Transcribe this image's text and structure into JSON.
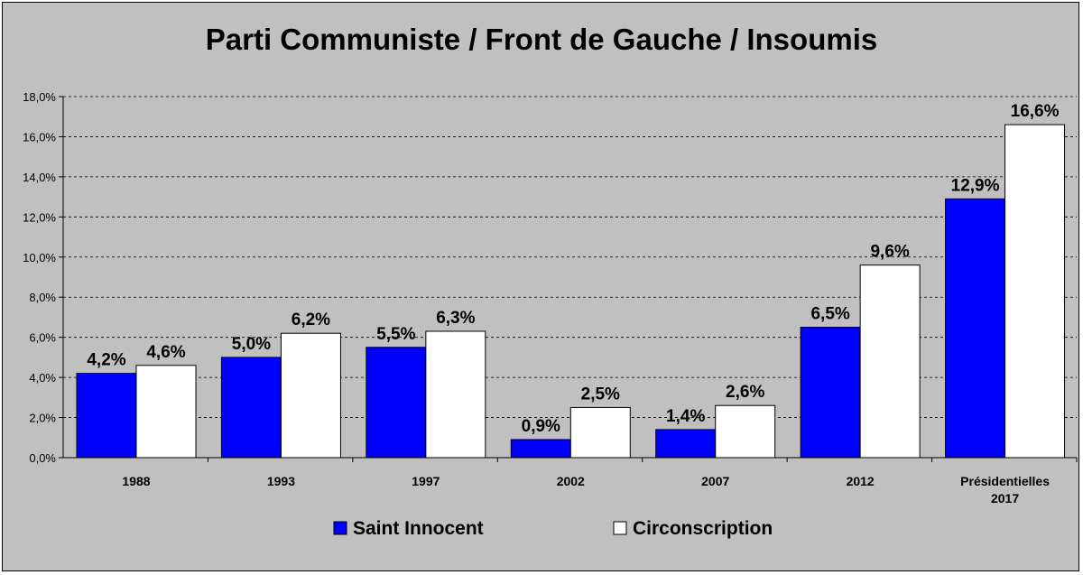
{
  "chart_data": {
    "type": "bar",
    "title": "Parti Communiste / Front de Gauche / Insoumis",
    "xlabel": "",
    "ylabel": "",
    "categories": [
      [
        "1988"
      ],
      [
        "1993"
      ],
      [
        "1997"
      ],
      [
        "2002"
      ],
      [
        "2007"
      ],
      [
        "2012"
      ],
      [
        "Présidentielles",
        "2017"
      ]
    ],
    "series": [
      {
        "name": "Saint Innocent",
        "color": "#0000ff",
        "values": [
          4.2,
          5.0,
          5.5,
          0.9,
          1.4,
          6.5,
          12.9
        ],
        "labels": [
          "4,2%",
          "5,0%",
          "5,5%",
          "0,9%",
          "1,4%",
          "6,5%",
          "12,9%"
        ]
      },
      {
        "name": "Circonscription",
        "color": "#ffffff",
        "values": [
          4.6,
          6.2,
          6.3,
          2.5,
          2.6,
          9.6,
          16.6
        ],
        "labels": [
          "4,6%",
          "6,2%",
          "6,3%",
          "2,5%",
          "2,6%",
          "9,6%",
          "16,6%"
        ]
      }
    ],
    "ylim": [
      0,
      18
    ],
    "yticks": [
      0,
      2,
      4,
      6,
      8,
      10,
      12,
      14,
      16,
      18
    ],
    "ytick_labels": [
      "0,0%",
      "2,0%",
      "4,0%",
      "6,0%",
      "8,0%",
      "10,0%",
      "12,0%",
      "14,0%",
      "16,0%",
      "18,0%"
    ],
    "grid": true,
    "legend_position": "bottom",
    "background_color": "#c0c0c0"
  }
}
